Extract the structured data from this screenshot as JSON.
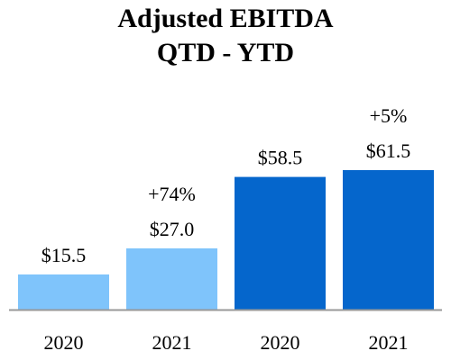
{
  "chart_data": {
    "type": "bar",
    "title": "Adjusted EBITDA",
    "subtitle": "QTD - YTD",
    "xlabel": "",
    "ylabel": "",
    "categories": [
      "2020",
      "2021",
      "2020",
      "2021"
    ],
    "values": [
      15.5,
      27.0,
      58.5,
      61.5
    ],
    "value_labels": [
      "$15.5",
      "$27.0",
      "$58.5",
      "$61.5"
    ],
    "change_labels": [
      "",
      "+74%",
      "",
      "+5%"
    ],
    "groups": [
      {
        "period": "QTD",
        "bar_indices": [
          0,
          1
        ],
        "color": "#7fc4fb"
      },
      {
        "period": "YTD",
        "bar_indices": [
          2,
          3
        ],
        "color": "#0566cc"
      }
    ],
    "ylim": [
      0,
      65
    ],
    "grid": false,
    "legend": "none"
  },
  "colors": {
    "qtd_bar": "#7fc4fb",
    "ytd_bar": "#0566cc",
    "axis_line": "#999999"
  }
}
